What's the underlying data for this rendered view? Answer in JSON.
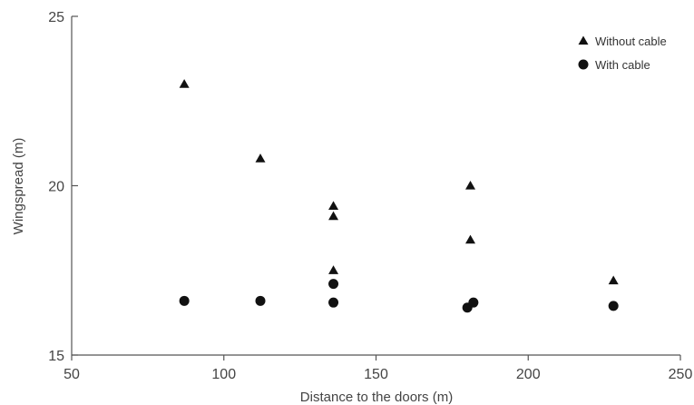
{
  "chart_data": {
    "type": "scatter",
    "title": "",
    "xlabel": "Distance to the doors (m)",
    "ylabel": "Wingspread (m)",
    "xlim": [
      50,
      250
    ],
    "ylim": [
      15,
      25
    ],
    "xticks": [
      50,
      100,
      150,
      200,
      250
    ],
    "yticks": [
      15,
      20,
      25
    ],
    "grid": false,
    "legend_position": "top-right",
    "series": [
      {
        "name": "Without cable",
        "marker": "triangle",
        "color": "#111111",
        "points": [
          {
            "x": 87,
            "y": 23.0
          },
          {
            "x": 112,
            "y": 20.8
          },
          {
            "x": 136,
            "y": 19.4
          },
          {
            "x": 136,
            "y": 19.1
          },
          {
            "x": 136,
            "y": 17.5
          },
          {
            "x": 181,
            "y": 20.0
          },
          {
            "x": 181,
            "y": 18.4
          },
          {
            "x": 228,
            "y": 17.2
          }
        ]
      },
      {
        "name": "With cable",
        "marker": "circle",
        "color": "#111111",
        "points": [
          {
            "x": 87,
            "y": 16.6
          },
          {
            "x": 112,
            "y": 16.6
          },
          {
            "x": 136,
            "y": 17.1
          },
          {
            "x": 136,
            "y": 16.55
          },
          {
            "x": 180,
            "y": 16.4
          },
          {
            "x": 182,
            "y": 16.55
          },
          {
            "x": 228,
            "y": 16.45
          }
        ]
      }
    ]
  }
}
